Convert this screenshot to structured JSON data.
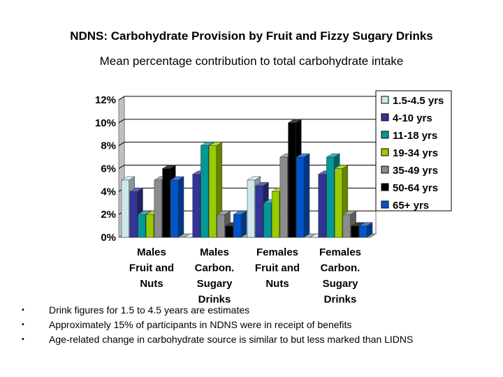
{
  "slide": {
    "title": "NDNS: Carbohydrate Provision by Fruit and Fizzy Sugary Drinks",
    "subtitle": "Mean percentage contribution to total carbohydrate intake",
    "notes": [
      "Drink figures for 1.5 to 4.5 years are estimates",
      "Approximately 15% of participants in NDNS were in receipt of benefits",
      "Age-related change in carbohydrate source is similar to but less marked than LIDNS"
    ]
  },
  "chart_data": {
    "type": "bar",
    "title": "",
    "xlabel": "",
    "ylabel": "",
    "ylim": [
      0,
      12
    ],
    "yticks": [
      "0%",
      "2%",
      "4%",
      "6%",
      "8%",
      "10%",
      "12%"
    ],
    "grid": true,
    "legend": "right",
    "categories": [
      [
        "Males",
        "Fruit and",
        "Nuts"
      ],
      [
        "Males",
        "Carbon.",
        "Sugary",
        "Drinks"
      ],
      [
        "Females",
        "Fruit and",
        "Nuts"
      ],
      [
        "Females",
        "Carbon.",
        "Sugary",
        "Drinks"
      ]
    ],
    "series": [
      {
        "name": "1.5-4.5 yrs",
        "color": "#cce8ee",
        "values": [
          5,
          0,
          5,
          0
        ]
      },
      {
        "name": "4-10 yrs",
        "color": "#333399",
        "values": [
          4,
          5.5,
          4.5,
          5.5
        ]
      },
      {
        "name": "11-18 yrs",
        "color": "#009999",
        "values": [
          2,
          8,
          3,
          7
        ]
      },
      {
        "name": "19-34 yrs",
        "color": "#99cc00",
        "values": [
          2,
          8,
          4,
          6
        ]
      },
      {
        "name": "35-49 yrs",
        "color": "#8c8c8c",
        "values": [
          5,
          2,
          7,
          2
        ]
      },
      {
        "name": "50-64 yrs",
        "color": "#000000",
        "values": [
          6,
          1,
          10,
          1
        ]
      },
      {
        "name": "65+ yrs",
        "color": "#0055cc",
        "values": [
          5,
          2,
          7,
          1
        ]
      }
    ]
  }
}
